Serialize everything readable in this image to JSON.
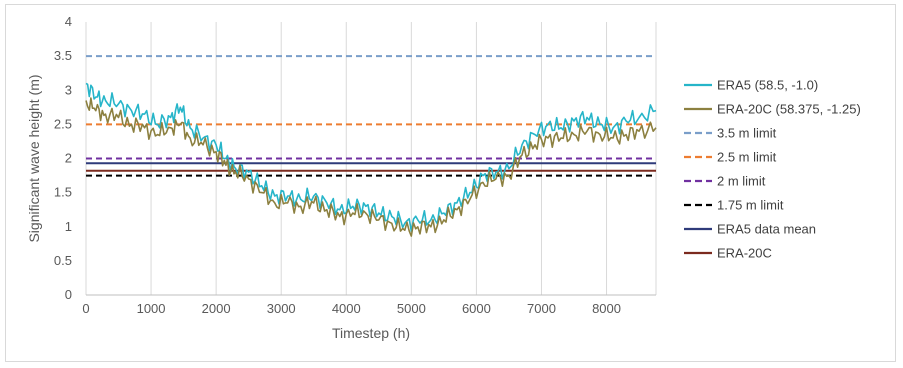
{
  "chart_data": {
    "type": "line",
    "title": "",
    "xlabel": "Timestep (h)",
    "ylabel": "Significant wave height (m)",
    "xlim": [
      0,
      8760
    ],
    "ylim": [
      0,
      4
    ],
    "x_ticks": [
      0,
      1000,
      2000,
      3000,
      4000,
      5000,
      6000,
      7000,
      8000
    ],
    "y_ticks": [
      0,
      0.5,
      1,
      1.5,
      2,
      2.5,
      3,
      3.5,
      4
    ],
    "y_tick_labels": [
      "0",
      "0.5",
      "1",
      "1.5",
      "2",
      "2.5",
      "3",
      "3.5",
      "4"
    ],
    "grid": "vertical",
    "legend_position": "right",
    "series": [
      {
        "name": "ERA5 (58.5, -1.0)",
        "color": "#26b5c9",
        "style": "solid",
        "x": [
          0,
          150,
          300,
          500,
          700,
          900,
          1100,
          1300,
          1450,
          1600,
          1800,
          2000,
          2150,
          2300,
          2500,
          2700,
          2900,
          3100,
          3300,
          3500,
          3700,
          3900,
          4100,
          4300,
          4500,
          4700,
          4900,
          5100,
          5300,
          5500,
          5700,
          5900,
          6100,
          6300,
          6500,
          6700,
          6900,
          7100,
          7300,
          7500,
          7700,
          7900,
          8100,
          8300,
          8500,
          8760
        ],
        "values": [
          3.1,
          2.9,
          2.85,
          2.8,
          2.7,
          2.65,
          2.5,
          2.6,
          2.75,
          2.45,
          2.3,
          2.2,
          2.0,
          1.85,
          1.8,
          1.6,
          1.45,
          1.45,
          1.4,
          1.45,
          1.35,
          1.25,
          1.3,
          1.3,
          1.2,
          1.15,
          1.05,
          1.1,
          1.1,
          1.2,
          1.35,
          1.5,
          1.75,
          1.8,
          1.85,
          2.2,
          2.35,
          2.5,
          2.45,
          2.55,
          2.6,
          2.5,
          2.45,
          2.55,
          2.6,
          2.7
        ]
      },
      {
        "name": "ERA-20C (58.375, -1.25)",
        "color": "#8c8040",
        "style": "solid",
        "x": [
          0,
          150,
          300,
          500,
          700,
          900,
          1100,
          1300,
          1450,
          1600,
          1800,
          2000,
          2150,
          2300,
          2500,
          2700,
          2900,
          3100,
          3300,
          3500,
          3700,
          3900,
          4100,
          4300,
          4500,
          4700,
          4900,
          5100,
          5300,
          5500,
          5700,
          5900,
          6100,
          6300,
          6500,
          6700,
          6900,
          7100,
          7300,
          7500,
          7700,
          7900,
          8100,
          8300,
          8500,
          8760
        ],
        "values": [
          2.85,
          2.7,
          2.65,
          2.6,
          2.5,
          2.45,
          2.35,
          2.45,
          2.5,
          2.3,
          2.2,
          2.1,
          1.9,
          1.8,
          1.7,
          1.5,
          1.35,
          1.35,
          1.3,
          1.35,
          1.25,
          1.15,
          1.2,
          1.2,
          1.1,
          1.05,
          0.95,
          1.0,
          1.0,
          1.1,
          1.25,
          1.4,
          1.65,
          1.7,
          1.75,
          2.05,
          2.2,
          2.3,
          2.3,
          2.35,
          2.4,
          2.35,
          2.3,
          2.35,
          2.4,
          2.45
        ]
      },
      {
        "name": "3.5 m limit",
        "color": "#7a9ec9",
        "style": "dashed",
        "constant": 3.5
      },
      {
        "name": "2.5 m limit",
        "color": "#ed7d31",
        "style": "dashed",
        "constant": 2.5
      },
      {
        "name": "2 m limit",
        "color": "#7030a0",
        "style": "dashed",
        "constant": 2.0
      },
      {
        "name": "1.75 m limit",
        "color": "#000000",
        "style": "dashed",
        "constant": 1.75
      },
      {
        "name": "ERA5 data mean",
        "color": "#2f3b7a",
        "style": "solid",
        "constant": 1.93
      },
      {
        "name": "ERA-20C",
        "color": "#7b2a1e",
        "style": "solid",
        "constant": 1.82
      }
    ]
  }
}
